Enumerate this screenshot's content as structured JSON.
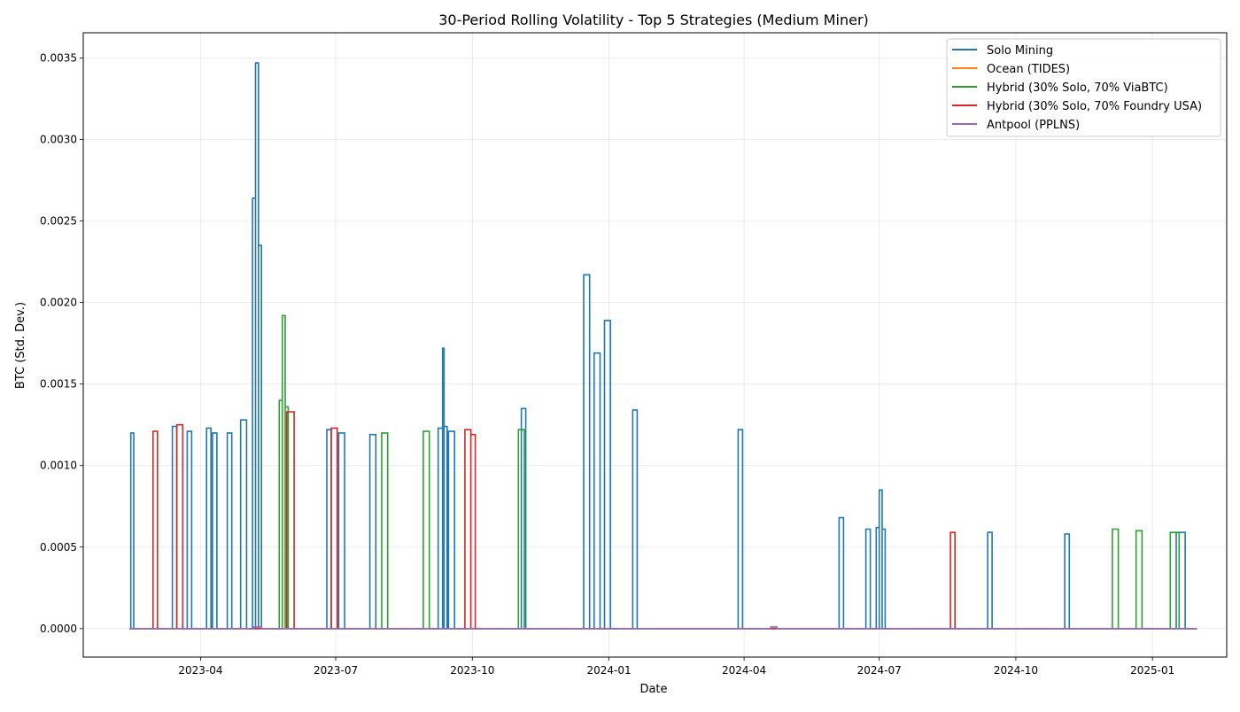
{
  "chart_data": {
    "type": "line",
    "title": "30-Period Rolling Volatility - Top 5 Strategies (Medium Miner)",
    "xlabel": "Date",
    "ylabel": "BTC (Std. Dev.)",
    "ylim": [
      -0.000175,
      0.003655
    ],
    "xlim": [
      "2023-01-12",
      "2025-02-20"
    ],
    "y_ticks": [
      0.0,
      0.0005,
      0.001,
      0.0015,
      0.002,
      0.0025,
      0.003,
      0.0035
    ],
    "y_tick_labels": [
      "0.0000",
      "0.0005",
      "0.0010",
      "0.0015",
      "0.0020",
      "0.0025",
      "0.0030",
      "0.0035"
    ],
    "x_ticks": [
      "2023-04-01",
      "2023-07-01",
      "2023-10-01",
      "2024-01-01",
      "2024-04-01",
      "2024-07-01",
      "2024-10-01",
      "2025-01-01"
    ],
    "x_tick_labels": [
      "2023-04",
      "2023-07",
      "2023-10",
      "2024-01",
      "2024-04",
      "2024-07",
      "2024-10",
      "2025-01"
    ],
    "grid": true,
    "legend_position": "top-right",
    "draw_style": "steps",
    "x_start": "2023-02-12",
    "x_end": "2025-01-31",
    "series": [
      {
        "name": "Solo Mining",
        "color": "#1f77b4",
        "spikes": [
          {
            "start": "2023-02-13",
            "end": "2023-02-15",
            "value": 0.0012
          },
          {
            "start": "2023-03-13",
            "end": "2023-03-16",
            "value": 0.00124
          },
          {
            "start": "2023-03-23",
            "end": "2023-03-26",
            "value": 0.00121
          },
          {
            "start": "2023-04-05",
            "end": "2023-04-08",
            "value": 0.00123
          },
          {
            "start": "2023-04-09",
            "end": "2023-04-12",
            "value": 0.0012
          },
          {
            "start": "2023-04-19",
            "end": "2023-04-22",
            "value": 0.0012
          },
          {
            "start": "2023-04-28",
            "end": "2023-05-02",
            "value": 0.00128
          },
          {
            "start": "2023-05-06",
            "end": "2023-05-08",
            "value": 0.00264
          },
          {
            "start": "2023-05-08",
            "end": "2023-05-10",
            "value": 0.00347
          },
          {
            "start": "2023-05-10",
            "end": "2023-05-12",
            "value": 0.00235
          },
          {
            "start": "2023-06-25",
            "end": "2023-06-28",
            "value": 0.00122
          },
          {
            "start": "2023-07-03",
            "end": "2023-07-07",
            "value": 0.0012
          },
          {
            "start": "2023-07-24",
            "end": "2023-07-28",
            "value": 0.00119
          },
          {
            "start": "2023-09-08",
            "end": "2023-09-11",
            "value": 0.00123
          },
          {
            "start": "2023-09-11",
            "end": "2023-09-12",
            "value": 0.00172
          },
          {
            "start": "2023-09-12",
            "end": "2023-09-14",
            "value": 0.00124
          },
          {
            "start": "2023-09-15",
            "end": "2023-09-19",
            "value": 0.00121
          },
          {
            "start": "2023-11-03",
            "end": "2023-11-06",
            "value": 0.00135
          },
          {
            "start": "2023-12-15",
            "end": "2023-12-19",
            "value": 0.00217
          },
          {
            "start": "2023-12-22",
            "end": "2023-12-26",
            "value": 0.00169
          },
          {
            "start": "2023-12-29",
            "end": "2024-01-02",
            "value": 0.00189
          },
          {
            "start": "2024-01-17",
            "end": "2024-01-20",
            "value": 0.00134
          },
          {
            "start": "2024-03-28",
            "end": "2024-03-31",
            "value": 0.00122
          },
          {
            "start": "2024-06-04",
            "end": "2024-06-07",
            "value": 0.00068
          },
          {
            "start": "2024-06-22",
            "end": "2024-06-25",
            "value": 0.00061
          },
          {
            "start": "2024-06-29",
            "end": "2024-07-01",
            "value": 0.00062
          },
          {
            "start": "2024-07-01",
            "end": "2024-07-03",
            "value": 0.00085
          },
          {
            "start": "2024-07-03",
            "end": "2024-07-05",
            "value": 0.00061
          },
          {
            "start": "2024-09-12",
            "end": "2024-09-15",
            "value": 0.00059
          },
          {
            "start": "2024-11-03",
            "end": "2024-11-06",
            "value": 0.00058
          },
          {
            "start": "2025-01-17",
            "end": "2025-01-23",
            "value": 0.00059
          }
        ]
      },
      {
        "name": "Ocean (TIDES)",
        "color": "#ff7f0e",
        "spikes": []
      },
      {
        "name": "Hybrid (30% Solo, 70% ViaBTC)",
        "color": "#2ca02c",
        "spikes": [
          {
            "start": "2023-05-24",
            "end": "2023-05-26",
            "value": 0.0014
          },
          {
            "start": "2023-05-26",
            "end": "2023-05-28",
            "value": 0.00192
          },
          {
            "start": "2023-05-28",
            "end": "2023-05-30",
            "value": 0.00136
          },
          {
            "start": "2023-08-01",
            "end": "2023-08-05",
            "value": 0.0012
          },
          {
            "start": "2023-08-29",
            "end": "2023-09-02",
            "value": 0.00121
          },
          {
            "start": "2023-11-01",
            "end": "2023-11-05",
            "value": 0.00122
          },
          {
            "start": "2024-12-05",
            "end": "2024-12-09",
            "value": 0.00061
          },
          {
            "start": "2024-12-21",
            "end": "2024-12-25",
            "value": 0.0006
          },
          {
            "start": "2025-01-13",
            "end": "2025-01-19",
            "value": 0.00059
          }
        ]
      },
      {
        "name": "Hybrid (30% Solo, 70% Foundry USA)",
        "color": "#d62728",
        "spikes": [
          {
            "start": "2023-02-28",
            "end": "2023-03-03",
            "value": 0.00121
          },
          {
            "start": "2023-03-16",
            "end": "2023-03-20",
            "value": 0.00125
          },
          {
            "start": "2023-05-29",
            "end": "2023-06-03",
            "value": 0.00133
          },
          {
            "start": "2023-06-28",
            "end": "2023-07-02",
            "value": 0.00123
          },
          {
            "start": "2023-09-26",
            "end": "2023-09-30",
            "value": 0.00122
          },
          {
            "start": "2023-09-30",
            "end": "2023-10-03",
            "value": 0.00119
          },
          {
            "start": "2024-08-18",
            "end": "2024-08-21",
            "value": 0.00059
          }
        ]
      },
      {
        "name": "Antpool (PPLNS)",
        "color": "#9467bd",
        "spikes": [
          {
            "start": "2023-05-07",
            "end": "2023-05-12",
            "value": 1e-05
          },
          {
            "start": "2024-04-19",
            "end": "2024-04-23",
            "value": 1e-05
          }
        ]
      }
    ]
  }
}
